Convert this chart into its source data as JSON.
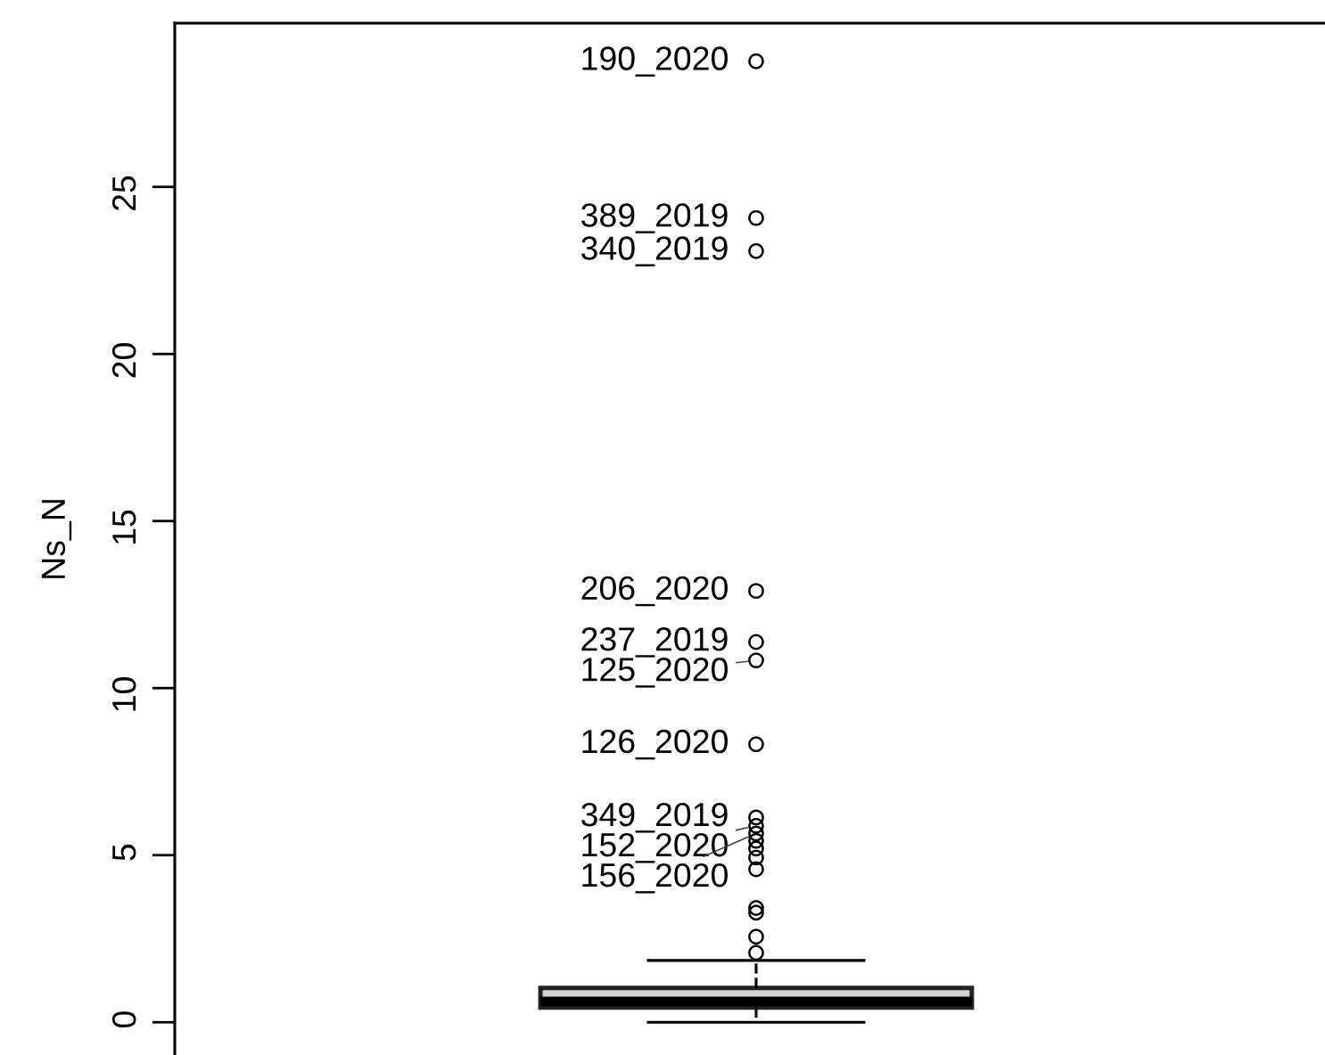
{
  "chart_data": {
    "type": "box",
    "ylabel": "Ns_N",
    "categories": [
      null
    ],
    "boxes": [
      {
        "low": 0,
        "q1": 0.44,
        "median": 0.62,
        "q3": 1.03,
        "high": 1.85,
        "outliers": [
          28.76,
          24.07,
          23.08,
          12.91,
          11.38,
          10.83,
          8.32,
          6.13,
          5.88,
          5.65,
          5.43,
          5.2,
          4.93,
          4.58,
          3.42,
          3.28,
          2.56,
          2.08
        ]
      }
    ],
    "color": "#d3d3d3",
    "marker": "circle",
    "line_style": "dashed",
    "ylim": [
      -0.98,
      29.9
    ],
    "yticks": [
      0,
      5,
      10,
      15,
      20,
      25
    ],
    "annotations": [
      "190_2020",
      "389_2019",
      "340_2019",
      "206_2020",
      "237_2019",
      "125_2020",
      "126_2020",
      "349_2019",
      "152_2020",
      "156_2020"
    ]
  }
}
